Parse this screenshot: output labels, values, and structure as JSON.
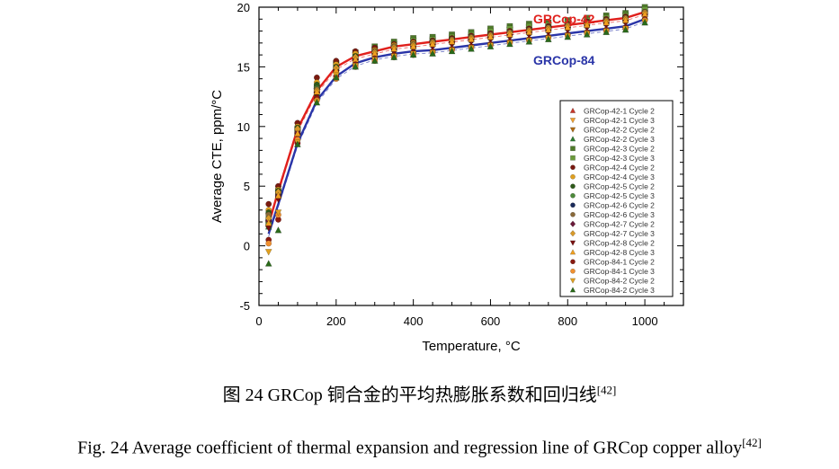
{
  "chart_data": {
    "type": "scatter",
    "xlabel": "Temperature, °C",
    "ylabel": "Average CTE, ppm/°C",
    "xlim": [
      0,
      1100
    ],
    "ylim": [
      -5,
      20
    ],
    "xticks": [
      "0",
      "200",
      "400",
      "600",
      "800",
      "1000"
    ],
    "yticks": [
      "-5",
      "0",
      "5",
      "10",
      "15",
      "20"
    ],
    "grid": false,
    "legend_placement": "right",
    "annotations": [
      {
        "text": "GRCop-42",
        "color": "#e0201c"
      },
      {
        "text": "GRCop-84",
        "color": "#2a35a8"
      }
    ],
    "x": [
      25,
      50,
      100,
      150,
      200,
      250,
      300,
      350,
      400,
      450,
      500,
      550,
      600,
      650,
      700,
      750,
      800,
      850,
      900,
      950,
      1000
    ],
    "regression": [
      {
        "label": "GRCop-42",
        "color": "#e0201c",
        "values": [
          1.8,
          4.6,
          9.8,
          13.0,
          15.0,
          15.9,
          16.3,
          16.7,
          16.9,
          17.1,
          17.3,
          17.5,
          17.7,
          17.9,
          18.1,
          18.3,
          18.5,
          18.7,
          18.9,
          19.1,
          19.6
        ]
      },
      {
        "label": "GRCop-84",
        "color": "#2a35a8",
        "values": [
          1.0,
          3.5,
          8.6,
          12.2,
          14.2,
          15.3,
          15.8,
          16.1,
          16.3,
          16.4,
          16.6,
          16.8,
          17.0,
          17.2,
          17.4,
          17.6,
          17.8,
          18.0,
          18.2,
          18.4,
          19.0
        ]
      }
    ],
    "series": [
      {
        "name": "GRCop-42-1 Cycle 2",
        "marker": "triangle",
        "color": "#c8372a",
        "values": [
          2.2,
          4.5,
          9.9,
          13.4,
          14.9,
          15.8,
          16.5,
          16.8,
          17.1,
          17.3,
          17.3,
          17.6,
          17.8,
          18.0,
          18.2,
          18.4,
          18.6,
          18.8,
          18.9,
          19.2,
          19.7
        ]
      },
      {
        "name": "GRCop-42-1 Cycle 3",
        "marker": "triangle-down",
        "color": "#f0a030",
        "values": [
          1.9,
          4.3,
          9.7,
          13.1,
          15.2,
          16.0,
          16.4,
          16.9,
          17.2,
          17.2,
          17.4,
          17.5,
          17.9,
          18.1,
          18.3,
          18.5,
          18.7,
          18.8,
          19.0,
          19.3,
          19.8
        ]
      },
      {
        "name": "GRCop-42-2 Cycle 2",
        "marker": "triangle-down",
        "color": "#b06a10",
        "values": [
          2.5,
          4.8,
          10.1,
          13.0,
          14.7,
          15.7,
          16.2,
          16.6,
          16.9,
          17.0,
          17.2,
          17.5,
          17.6,
          17.9,
          18.1,
          18.2,
          18.4,
          18.6,
          18.8,
          19.0,
          19.5
        ]
      },
      {
        "name": "GRCop-42-2 Cycle 3",
        "marker": "triangle",
        "color": "#2e7d32",
        "values": [
          1.6,
          4.2,
          9.5,
          12.8,
          15.0,
          15.9,
          16.6,
          17.0,
          17.3,
          17.4,
          17.6,
          17.8,
          18.1,
          18.3,
          18.5,
          18.6,
          18.8,
          19.0,
          19.2,
          19.4,
          19.9
        ]
      },
      {
        "name": "GRCop-42-3 Cycle 2",
        "marker": "square",
        "color": "#4e7a2a",
        "values": [
          2.0,
          4.6,
          9.8,
          13.3,
          15.3,
          16.2,
          16.7,
          17.1,
          17.4,
          17.5,
          17.7,
          17.9,
          18.2,
          18.4,
          18.6,
          18.7,
          18.9,
          19.1,
          19.3,
          19.5,
          20.0
        ]
      },
      {
        "name": "GRCop-42-3 Cycle 3",
        "marker": "square",
        "color": "#6a9a3a",
        "values": [
          1.8,
          4.4,
          9.6,
          13.0,
          15.1,
          16.0,
          16.5,
          16.9,
          17.2,
          17.3,
          17.5,
          17.7,
          18.0,
          18.2,
          18.4,
          18.5,
          18.7,
          18.9,
          19.1,
          19.3,
          19.8
        ]
      },
      {
        "name": "GRCop-42-4 Cycle 2",
        "marker": "circle",
        "color": "#7a1a10",
        "values": [
          3.5,
          5.0,
          10.3,
          14.1,
          15.5,
          16.3,
          16.6,
          16.9,
          17.1,
          17.2,
          17.4,
          17.6,
          17.8,
          18.0,
          18.2,
          18.4,
          18.6,
          18.8,
          19.0,
          19.2,
          19.6
        ]
      },
      {
        "name": "GRCop-42-4 Cycle 3",
        "marker": "circle",
        "color": "#e0a020",
        "values": [
          3.0,
          4.7,
          10.0,
          13.7,
          15.2,
          16.1,
          16.4,
          16.8,
          17.0,
          17.1,
          17.3,
          17.5,
          17.7,
          17.9,
          18.1,
          18.3,
          18.5,
          18.7,
          18.9,
          19.1,
          19.5
        ]
      },
      {
        "name": "GRCop-42-5 Cycle 2",
        "marker": "circle",
        "color": "#2f5a1a",
        "values": [
          2.8,
          4.6,
          9.9,
          13.5,
          15.0,
          15.9,
          16.3,
          16.7,
          16.9,
          17.1,
          17.3,
          17.5,
          17.7,
          17.9,
          18.1,
          18.3,
          18.5,
          18.7,
          18.9,
          19.1,
          19.6
        ]
      },
      {
        "name": "GRCop-42-5 Cycle 3",
        "marker": "circle",
        "color": "#4d8a3a",
        "values": [
          2.4,
          4.3,
          9.6,
          13.2,
          14.8,
          15.7,
          16.2,
          16.6,
          16.8,
          17.0,
          17.2,
          17.4,
          17.6,
          17.8,
          18.0,
          18.2,
          18.4,
          18.6,
          18.8,
          19.0,
          19.5
        ]
      },
      {
        "name": "GRCop-42-6 Cycle 2",
        "marker": "circle",
        "color": "#1a2a5a",
        "values": [
          2.2,
          4.1,
          9.4,
          12.9,
          14.6,
          15.5,
          16.0,
          16.4,
          16.6,
          16.8,
          17.0,
          17.2,
          17.4,
          17.6,
          17.8,
          18.0,
          18.2,
          18.4,
          18.6,
          18.8,
          19.3
        ]
      },
      {
        "name": "GRCop-42-6 Cycle 3",
        "marker": "circle",
        "color": "#8a6a3a",
        "values": [
          2.6,
          4.4,
          9.7,
          13.1,
          14.9,
          15.8,
          16.3,
          16.7,
          16.9,
          17.1,
          17.3,
          17.5,
          17.7,
          17.9,
          18.1,
          18.3,
          18.5,
          18.7,
          18.9,
          19.1,
          19.6
        ]
      },
      {
        "name": "GRCop-42-7 Cycle 2",
        "marker": "diamond",
        "color": "#6a1a3a",
        "values": [
          2.1,
          4.2,
          9.5,
          12.8,
          14.7,
          15.6,
          16.1,
          16.5,
          16.7,
          16.9,
          17.1,
          17.3,
          17.5,
          17.7,
          17.9,
          18.1,
          18.3,
          18.5,
          18.7,
          18.9,
          19.4
        ]
      },
      {
        "name": "GRCop-42-7 Cycle 3",
        "marker": "diamond",
        "color": "#d89a2a",
        "values": [
          2.3,
          4.5,
          9.8,
          13.0,
          14.9,
          15.8,
          16.2,
          16.6,
          16.8,
          17.0,
          17.2,
          17.4,
          17.6,
          17.8,
          18.0,
          18.2,
          18.4,
          18.6,
          18.8,
          19.0,
          19.5
        ]
      },
      {
        "name": "GRCop-42-8 Cycle 2",
        "marker": "triangle-down",
        "color": "#7a1010",
        "values": [
          1.5,
          3.9,
          9.2,
          12.7,
          14.5,
          15.4,
          15.9,
          16.3,
          16.5,
          16.7,
          16.9,
          17.1,
          17.3,
          17.5,
          17.7,
          17.9,
          18.1,
          18.3,
          18.5,
          18.7,
          19.2
        ]
      },
      {
        "name": "GRCop-42-8 Cycle 3",
        "marker": "triangle",
        "color": "#f0a020",
        "values": [
          1.9,
          4.2,
          9.4,
          12.9,
          14.7,
          15.6,
          16.1,
          16.5,
          16.7,
          16.9,
          17.1,
          17.3,
          17.5,
          17.7,
          17.9,
          18.1,
          18.3,
          18.5,
          18.7,
          18.9,
          19.4
        ]
      },
      {
        "name": "GRCop-84-1 Cycle 2",
        "marker": "circle",
        "color": "#8a1a10",
        "values": [
          0.5,
          2.2,
          8.6,
          12.4,
          14.2,
          15.2,
          15.7,
          16.0,
          16.2,
          16.3,
          16.5,
          16.7,
          16.9,
          17.1,
          17.3,
          17.5,
          17.7,
          17.9,
          18.1,
          18.3,
          19.0
        ]
      },
      {
        "name": "GRCop-84-1 Cycle 3",
        "marker": "circle",
        "color": "#f09030",
        "values": [
          0.2,
          2.6,
          8.9,
          12.2,
          14.0,
          15.0,
          15.5,
          15.8,
          16.0,
          16.2,
          16.4,
          16.6,
          16.8,
          17.0,
          17.2,
          17.4,
          17.6,
          17.8,
          18.0,
          18.2,
          18.9
        ]
      },
      {
        "name": "GRCop-84-2 Cycle 2",
        "marker": "triangle-down",
        "color": "#e0a020",
        "values": [
          -0.5,
          2.8,
          8.7,
          12.1,
          14.3,
          15.1,
          15.6,
          15.9,
          16.1,
          16.2,
          16.4,
          16.6,
          16.8,
          17.0,
          17.2,
          17.4,
          17.6,
          17.8,
          18.0,
          18.2,
          18.8
        ]
      },
      {
        "name": "GRCop-84-2 Cycle 3",
        "marker": "triangle",
        "color": "#2a6a1a",
        "values": [
          -1.5,
          1.3,
          8.5,
          12.0,
          14.1,
          15.0,
          15.5,
          15.8,
          16.0,
          16.1,
          16.3,
          16.5,
          16.7,
          16.9,
          17.1,
          17.3,
          17.5,
          17.7,
          17.9,
          18.1,
          18.7
        ]
      }
    ]
  },
  "captions": {
    "cn_text": "图 24 GRCop 铜合金的平均热膨胀系数和回归线",
    "cn_ref": "[42]",
    "en_text": "Fig. 24 Average coefficient of thermal expansion and regression line of GRCop copper alloy",
    "en_ref": "[42]"
  }
}
